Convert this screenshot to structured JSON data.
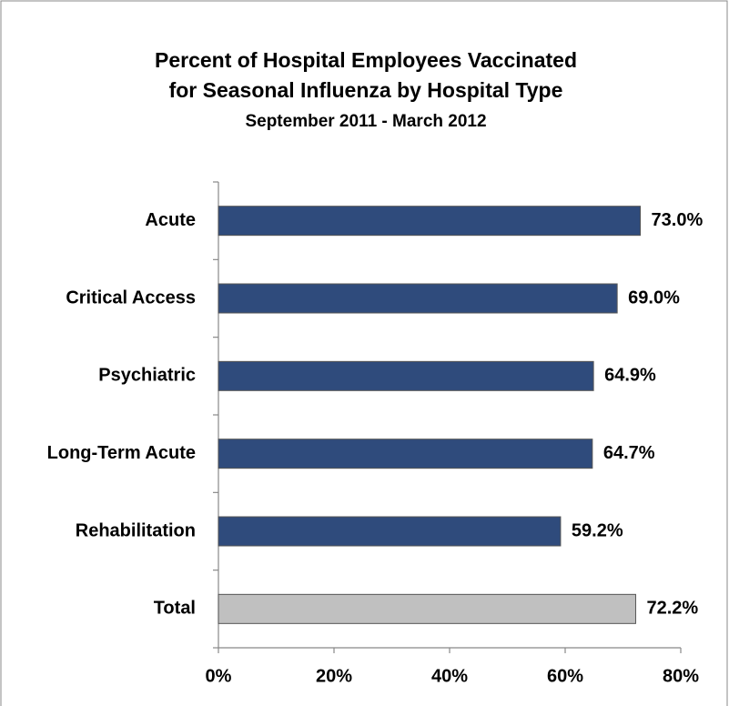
{
  "chart_data": {
    "type": "bar",
    "orientation": "horizontal",
    "title": [
      "Percent of Hospital Employees Vaccinated",
      "for Seasonal Influenza by Hospital Type"
    ],
    "subtitle": "September 2011 - March 2012",
    "categories": [
      "Acute",
      "Critical Access",
      "Psychiatric",
      "Long-Term Acute",
      "Rehabilitation",
      "Total"
    ],
    "values": [
      73.0,
      69.0,
      64.9,
      64.7,
      59.2,
      72.2
    ],
    "value_labels": [
      "73.0%",
      "69.0%",
      "64.9%",
      "64.7%",
      "59.2%",
      "72.2%"
    ],
    "colors": [
      "#2f4b7c",
      "#2f4b7c",
      "#2f4b7c",
      "#2f4b7c",
      "#2f4b7c",
      "#c0c0c0"
    ],
    "xlim": [
      0,
      80
    ],
    "xticks": [
      {
        "value": 0,
        "label": "0%"
      },
      {
        "value": 20,
        "label": "20%"
      },
      {
        "value": 40,
        "label": "40%"
      },
      {
        "value": 60,
        "label": "60%"
      },
      {
        "value": 80,
        "label": "80%"
      }
    ],
    "grid": false
  }
}
